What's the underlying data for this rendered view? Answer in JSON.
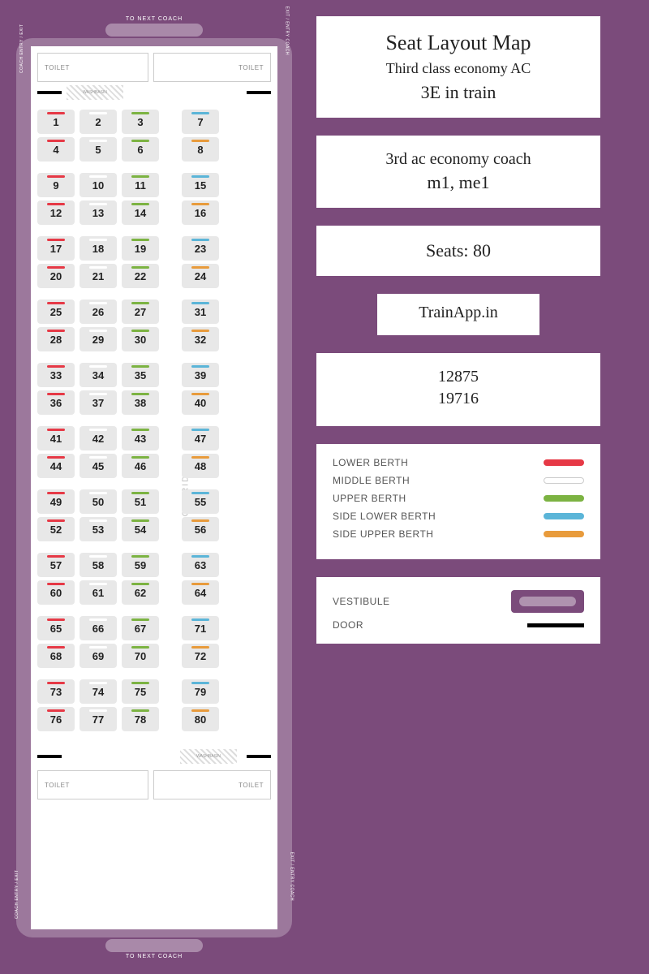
{
  "colors": {
    "background": "#7b4b7b",
    "lower": "#e63946",
    "middle": "#ffffff",
    "upper": "#7cb342",
    "sidelower": "#5bb5d8",
    "sideupper": "#e89b3c",
    "seat_bg": "#e8e8e8",
    "door": "#000000"
  },
  "labels": {
    "to_next_coach": "TO NEXT COACH",
    "toilet": "TOILET",
    "washbasin": "WASHBASIN",
    "corridor": "CORRIDOR",
    "coach_entry_exit": "COACH ENTRY / EXIT",
    "exit_entry_coach": "EXIT / ENTRY COACH"
  },
  "info": {
    "title": "Seat Layout Map",
    "subtitle": "Third class economy AC",
    "code": "3E in train",
    "coach_type": "3rd ac economy coach",
    "coach_nums": "m1, me1",
    "seats": "Seats: 80",
    "brand": "TrainApp.in",
    "train1": "12875",
    "train2": "19716"
  },
  "legend": {
    "lower": "LOWER BERTH",
    "middle": "MIDDLE BERTH",
    "upper": "UPPER BERTH",
    "sidelower": "SIDE LOWER BERTH",
    "sideupper": "SIDE UPPER BERTH",
    "vestibule": "VESTIBULE",
    "door": "DOOR"
  },
  "bays": [
    {
      "main": [
        [
          1,
          "lower"
        ],
        [
          2,
          "middle"
        ],
        [
          3,
          "upper"
        ],
        [
          4,
          "lower"
        ],
        [
          5,
          "middle"
        ],
        [
          6,
          "upper"
        ]
      ],
      "side": [
        [
          7,
          "sidelower"
        ],
        [
          8,
          "sideupper"
        ]
      ]
    },
    {
      "main": [
        [
          9,
          "lower"
        ],
        [
          10,
          "middle"
        ],
        [
          11,
          "upper"
        ],
        [
          12,
          "lower"
        ],
        [
          13,
          "middle"
        ],
        [
          14,
          "upper"
        ]
      ],
      "side": [
        [
          15,
          "sidelower"
        ],
        [
          16,
          "sideupper"
        ]
      ]
    },
    {
      "main": [
        [
          17,
          "lower"
        ],
        [
          18,
          "middle"
        ],
        [
          19,
          "upper"
        ],
        [
          20,
          "lower"
        ],
        [
          21,
          "middle"
        ],
        [
          22,
          "upper"
        ]
      ],
      "side": [
        [
          23,
          "sidelower"
        ],
        [
          24,
          "sideupper"
        ]
      ]
    },
    {
      "main": [
        [
          25,
          "lower"
        ],
        [
          26,
          "middle"
        ],
        [
          27,
          "upper"
        ],
        [
          28,
          "lower"
        ],
        [
          29,
          "middle"
        ],
        [
          30,
          "upper"
        ]
      ],
      "side": [
        [
          31,
          "sidelower"
        ],
        [
          32,
          "sideupper"
        ]
      ]
    },
    {
      "main": [
        [
          33,
          "lower"
        ],
        [
          34,
          "middle"
        ],
        [
          35,
          "upper"
        ],
        [
          36,
          "lower"
        ],
        [
          37,
          "middle"
        ],
        [
          38,
          "upper"
        ]
      ],
      "side": [
        [
          39,
          "sidelower"
        ],
        [
          40,
          "sideupper"
        ]
      ]
    },
    {
      "main": [
        [
          41,
          "lower"
        ],
        [
          42,
          "middle"
        ],
        [
          43,
          "upper"
        ],
        [
          44,
          "lower"
        ],
        [
          45,
          "middle"
        ],
        [
          46,
          "upper"
        ]
      ],
      "side": [
        [
          47,
          "sidelower"
        ],
        [
          48,
          "sideupper"
        ]
      ]
    },
    {
      "main": [
        [
          49,
          "lower"
        ],
        [
          50,
          "middle"
        ],
        [
          51,
          "upper"
        ],
        [
          52,
          "lower"
        ],
        [
          53,
          "middle"
        ],
        [
          54,
          "upper"
        ]
      ],
      "side": [
        [
          55,
          "sidelower"
        ],
        [
          56,
          "sideupper"
        ]
      ]
    },
    {
      "main": [
        [
          57,
          "lower"
        ],
        [
          58,
          "middle"
        ],
        [
          59,
          "upper"
        ],
        [
          60,
          "lower"
        ],
        [
          61,
          "middle"
        ],
        [
          62,
          "upper"
        ]
      ],
      "side": [
        [
          63,
          "sidelower"
        ],
        [
          64,
          "sideupper"
        ]
      ]
    },
    {
      "main": [
        [
          65,
          "lower"
        ],
        [
          66,
          "middle"
        ],
        [
          67,
          "upper"
        ],
        [
          68,
          "lower"
        ],
        [
          69,
          "middle"
        ],
        [
          70,
          "upper"
        ]
      ],
      "side": [
        [
          71,
          "sidelower"
        ],
        [
          72,
          "sideupper"
        ]
      ]
    },
    {
      "main": [
        [
          73,
          "lower"
        ],
        [
          74,
          "middle"
        ],
        [
          75,
          "upper"
        ],
        [
          76,
          "lower"
        ],
        [
          77,
          "middle"
        ],
        [
          78,
          "upper"
        ]
      ],
      "side": [
        [
          79,
          "sidelower"
        ],
        [
          80,
          "sideupper"
        ]
      ]
    }
  ]
}
